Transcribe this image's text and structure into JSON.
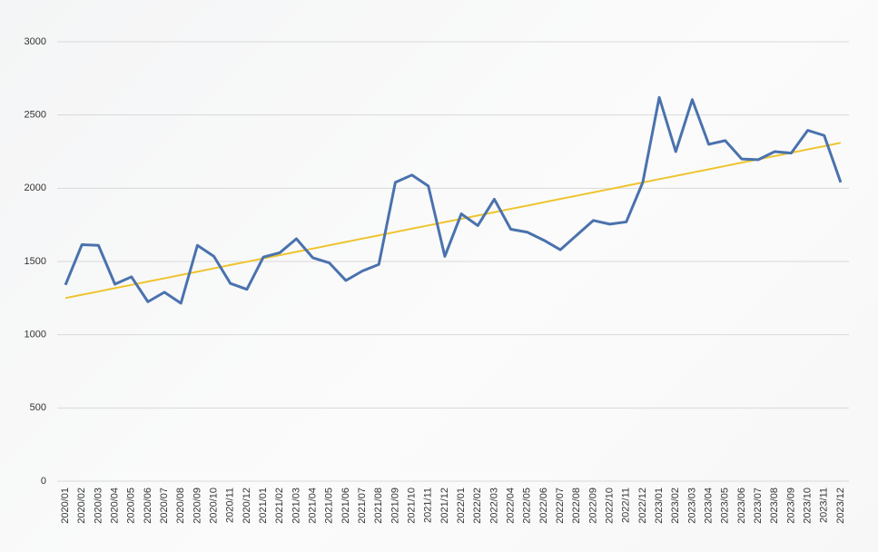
{
  "chart_data": {
    "type": "line",
    "categories": [
      "2020/01",
      "2020/02",
      "2020/03",
      "2020/04",
      "2020/05",
      "2020/06",
      "2020/07",
      "2020/08",
      "2020/09",
      "2020/10",
      "2020/11",
      "2020/12",
      "2021/01",
      "2021/02",
      "2021/03",
      "2021/04",
      "2021/05",
      "2021/06",
      "2021/07",
      "2021/08",
      "2021/09",
      "2021/10",
      "2021/11",
      "2021/12",
      "2022/01",
      "2022/02",
      "2022/03",
      "2022/04",
      "2022/05",
      "2022/06",
      "2022/07",
      "2022/08",
      "2022/09",
      "2022/10",
      "2022/11",
      "2022/12",
      "2023/01",
      "2023/02",
      "2023/03",
      "2023/04",
      "2023/05",
      "2023/06",
      "2023/07",
      "2023/08",
      "2023/09",
      "2023/10",
      "2023/11",
      "2023/12"
    ],
    "series": [
      {
        "color": "#4a72ad",
        "width": 3,
        "values": [
          1340,
          1615,
          1610,
          1345,
          1395,
          1225,
          1290,
          1215,
          1610,
          1535,
          1350,
          1310,
          1530,
          1560,
          1655,
          1525,
          1490,
          1370,
          1435,
          1480,
          2040,
          2090,
          2015,
          1535,
          1825,
          1745,
          1925,
          1720,
          1700,
          1645,
          1580,
          1680,
          1780,
          1755,
          1770,
          2040,
          2620,
          2250,
          2605,
          2300,
          2325,
          2200,
          2195,
          2250,
          2240,
          2395,
          2360,
          2040
        ]
      },
      {
        "color": "#eec42e",
        "width": 2,
        "values": [
          1250,
          1273,
          1295,
          1318,
          1340,
          1363,
          1385,
          1408,
          1430,
          1453,
          1476,
          1498,
          1521,
          1543,
          1566,
          1588,
          1611,
          1633,
          1656,
          1678,
          1701,
          1724,
          1746,
          1769,
          1791,
          1814,
          1836,
          1859,
          1881,
          1904,
          1927,
          1949,
          1972,
          1994,
          2017,
          2039,
          2062,
          2084,
          2107,
          2129,
          2152,
          2175,
          2197,
          2220,
          2242,
          2265,
          2287,
          2310
        ]
      }
    ],
    "ylim": [
      0,
      3000
    ],
    "yticks": [
      0,
      500,
      1000,
      1500,
      2000,
      2500,
      3000
    ],
    "grid": true
  }
}
